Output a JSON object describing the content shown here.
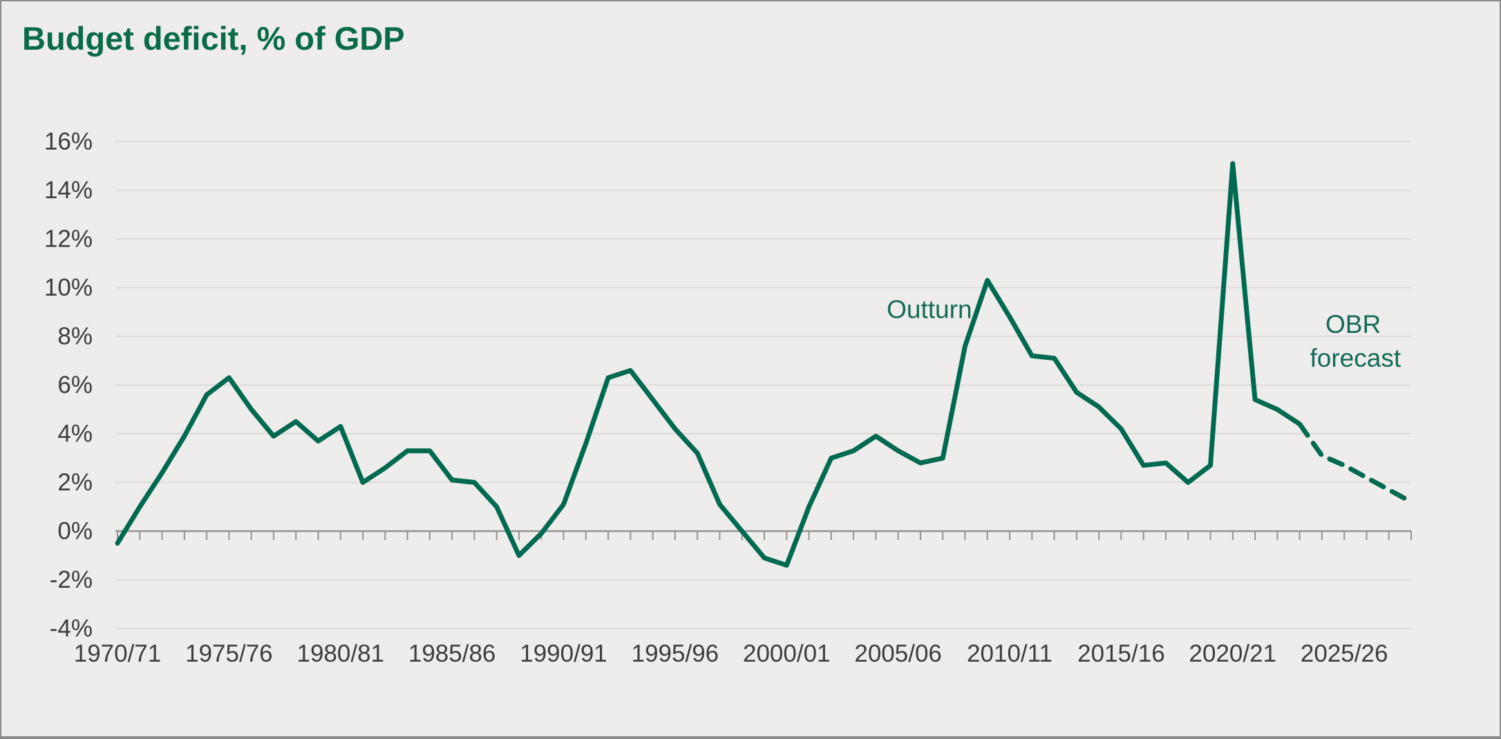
{
  "figure": {
    "title": "Budget deficit, % of GDP"
  },
  "chart_data": {
    "type": "line",
    "title": "Budget deficit, % of GDP",
    "xlabel": "",
    "ylabel": "",
    "ylim": [
      -4,
      16
    ],
    "y_tick_step": 2,
    "y_tick_labels": [
      "16%",
      "14%",
      "12%",
      "10%",
      "8%",
      "6%",
      "4%",
      "2%",
      "0%",
      "-2%",
      "-4%"
    ],
    "x_tick_labels": [
      "1970/71",
      "1975/76",
      "1980/81",
      "1985/86",
      "1990/91",
      "1995/96",
      "2000/01",
      "2005/06",
      "2010/11",
      "2015/16",
      "2020/21",
      "2025/26"
    ],
    "x_tick_label_interval": 5,
    "x_total_points": 59,
    "grid": "horizontal-only",
    "legend_position": "inline-annotations",
    "colors": {
      "line": "#006a51",
      "title": "#0a6b47",
      "annotation": "#146a58",
      "grid": "#dedad7",
      "axis": "#94928e",
      "tick_label": "#3e3d3b",
      "background": "#eeedeb"
    },
    "series": [
      {
        "name": "Outturn",
        "style": "solid",
        "start_index": 0,
        "years": [
          "1970/71",
          "1971/72",
          "1972/73",
          "1973/74",
          "1974/75",
          "1975/76",
          "1976/77",
          "1977/78",
          "1978/79",
          "1979/80",
          "1980/81",
          "1981/82",
          "1982/83",
          "1983/84",
          "1984/85",
          "1985/86",
          "1986/87",
          "1987/88",
          "1988/89",
          "1989/90",
          "1990/91",
          "1991/92",
          "1992/93",
          "1993/94",
          "1994/95",
          "1995/96",
          "1996/97",
          "1997/98",
          "1998/99",
          "1999/00",
          "2000/01",
          "2001/02",
          "2002/03",
          "2003/04",
          "2004/05",
          "2005/06",
          "2006/07",
          "2007/08",
          "2008/09",
          "2009/10",
          "2010/11",
          "2011/12",
          "2012/13",
          "2013/14",
          "2014/15",
          "2015/16",
          "2016/17",
          "2017/18",
          "2018/19",
          "2019/20",
          "2020/21",
          "2021/22",
          "2022/23",
          "2023/24"
        ],
        "values": [
          -0.5,
          1.0,
          2.4,
          3.9,
          5.6,
          6.3,
          5.0,
          3.9,
          4.5,
          3.7,
          4.3,
          2.0,
          2.6,
          3.3,
          3.3,
          2.1,
          2.0,
          1.0,
          -1.0,
          -0.1,
          1.1,
          3.6,
          6.3,
          6.6,
          5.4,
          4.2,
          3.2,
          1.1,
          0.0,
          -1.1,
          -1.4,
          1.0,
          3.0,
          3.3,
          3.9,
          3.3,
          2.8,
          3.0,
          7.6,
          10.3,
          8.8,
          7.2,
          7.1,
          5.7,
          5.1,
          4.2,
          2.7,
          2.8,
          2.0,
          2.7,
          15.1,
          5.4,
          5.0,
          4.4
        ]
      },
      {
        "name": "OBR forecast",
        "style": "dashed",
        "start_index": 53,
        "years": [
          "2023/24",
          "2024/25",
          "2025/26",
          "2026/27",
          "2027/28",
          "2028/29"
        ],
        "values": [
          4.4,
          3.1,
          2.7,
          2.2,
          1.7,
          1.2
        ]
      }
    ],
    "annotations": [
      {
        "text": "Outturn",
        "year_index": 36.4,
        "value": 9.1
      },
      {
        "text": "OBR",
        "year_index": 55.4,
        "value": 8.5
      },
      {
        "text": "forecast",
        "year_index": 55.5,
        "value": 7.1
      }
    ]
  }
}
